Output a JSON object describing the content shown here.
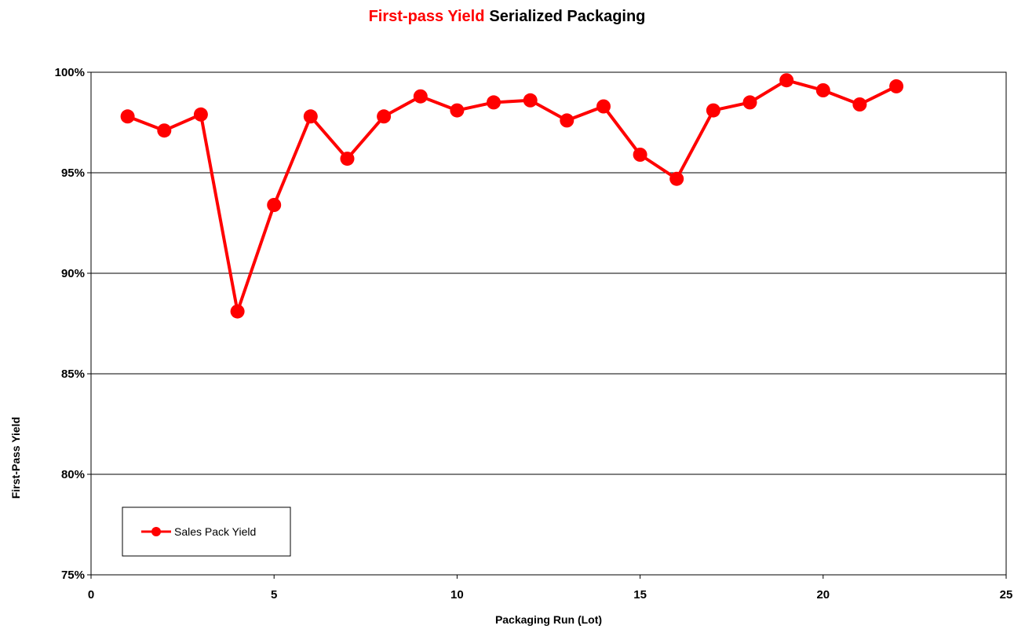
{
  "chart_data": {
    "type": "line",
    "title_part1": "First-pass Yield",
    "title_part2": "Serialized Packaging",
    "xlabel": "Packaging Run (Lot)",
    "ylabel": "First-Pass Yield",
    "xlim": [
      0,
      25
    ],
    "ylim": [
      75,
      100
    ],
    "x_ticks": [
      0,
      5,
      10,
      15,
      20,
      25
    ],
    "x_tick_labels": [
      "0",
      "5",
      "10",
      "15",
      "20",
      "25"
    ],
    "y_ticks": [
      75,
      80,
      85,
      90,
      95,
      100
    ],
    "y_tick_labels": [
      "75%",
      "80%",
      "85%",
      "90%",
      "95%",
      "100%"
    ],
    "grid": "horizontal",
    "legend_position": "bottom-left",
    "colors": {
      "series": "#ff0000",
      "title_accent": "#ff0000",
      "title_main": "#000000"
    },
    "series": [
      {
        "name": "Sales Pack Yield",
        "x": [
          1,
          2,
          3,
          4,
          5,
          6,
          7,
          8,
          9,
          10,
          11,
          12,
          13,
          14,
          15,
          16,
          17,
          18,
          19,
          20,
          21,
          22
        ],
        "values": [
          97.8,
          97.1,
          97.9,
          88.1,
          93.4,
          97.8,
          95.7,
          97.8,
          98.8,
          98.1,
          98.5,
          98.6,
          97.6,
          98.3,
          95.9,
          94.7,
          98.1,
          98.5,
          99.6,
          99.1,
          98.4,
          99.3
        ]
      }
    ]
  }
}
